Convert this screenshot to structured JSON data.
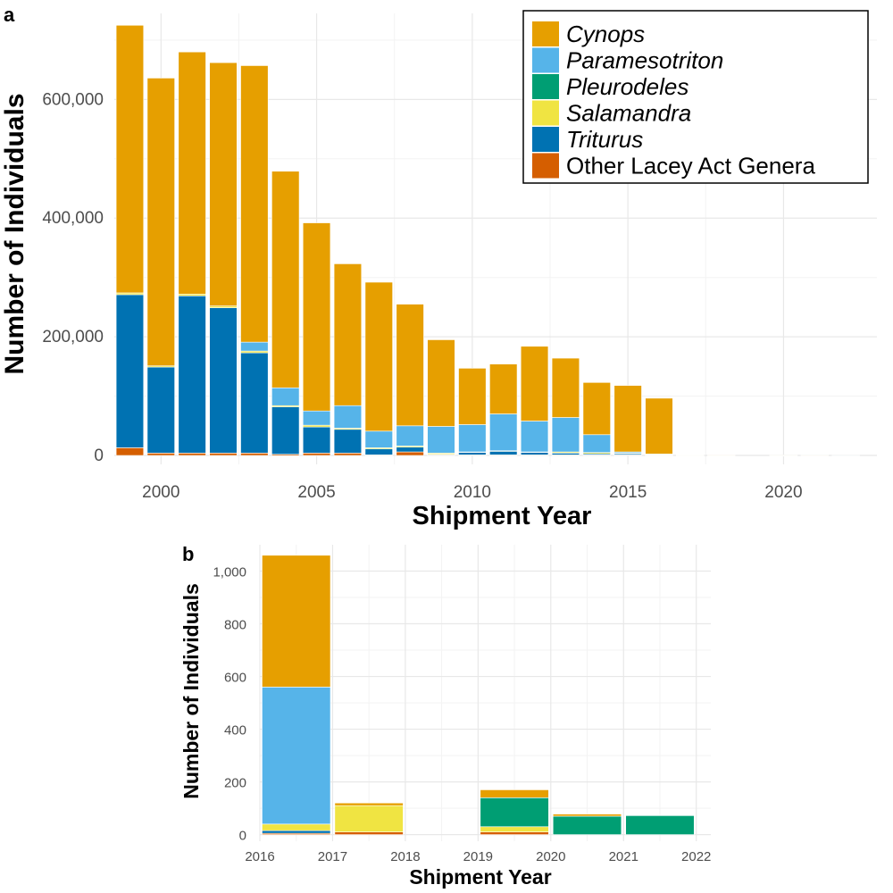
{
  "chart_data": [
    {
      "type": "bar",
      "stacked": true,
      "panel_label": "a",
      "xlabel": "Shipment Year",
      "ylabel": "Number of Individuals",
      "xlim": [
        1998.5,
        2023
      ],
      "ylim": [
        -15000,
        745000
      ],
      "x_ticks": [
        2000,
        2005,
        2010,
        2015,
        2020
      ],
      "y_ticks": [
        0,
        200000,
        400000,
        600000
      ],
      "y_tick_labels": [
        "0",
        "200,000",
        "400,000",
        "600,000"
      ],
      "legend_position": "top-right",
      "legend": [
        {
          "name": "Cynops",
          "color": "#E69F00",
          "italic": true
        },
        {
          "name": "Paramesotriton",
          "color": "#56B4E9",
          "italic": true
        },
        {
          "name": "Pleurodeles",
          "color": "#009E73",
          "italic": true
        },
        {
          "name": "Salamandra",
          "color": "#F0E442",
          "italic": true
        },
        {
          "name": "Triturus",
          "color": "#0072B2",
          "italic": true
        },
        {
          "name": "Other Lacey Act Genera",
          "color": "#D55E00",
          "italic": false
        }
      ],
      "stack_order": [
        "Other Lacey Act Genera",
        "Triturus",
        "Salamandra",
        "Pleurodeles",
        "Paramesotriton",
        "Cynops"
      ],
      "x": [
        1999,
        2000,
        2001,
        2002,
        2003,
        2004,
        2005,
        2006,
        2007,
        2008,
        2009,
        2010,
        2011,
        2012,
        2013,
        2014,
        2015,
        2016,
        2017,
        2018,
        2019,
        2020,
        2021,
        2022
      ],
      "series": [
        {
          "name": "Other Lacey Act Genera",
          "values": [
            13000,
            4000,
            4000,
            4000,
            4000,
            2000,
            4000,
            4000,
            1000,
            6000,
            1000,
            1000,
            1000,
            1000,
            1000,
            1000,
            1000,
            500,
            20,
            10,
            0,
            10,
            0,
            0
          ]
        },
        {
          "name": "Triturus",
          "values": [
            258000,
            145000,
            265000,
            245000,
            169000,
            80000,
            44000,
            40000,
            10000,
            8000,
            1000,
            4000,
            6000,
            4000,
            3000,
            2000,
            2000,
            500,
            20,
            0,
            0,
            0,
            0,
            0
          ]
        },
        {
          "name": "Salamandra",
          "values": [
            3000,
            2000,
            3000,
            3000,
            3000,
            2000,
            3000,
            2000,
            2000,
            2000,
            2000,
            1000,
            1000,
            1000,
            2000,
            2000,
            1000,
            500,
            20,
            100,
            0,
            20,
            0,
            0
          ]
        },
        {
          "name": "Pleurodeles",
          "values": [
            0,
            0,
            0,
            0,
            0,
            0,
            0,
            0,
            0,
            0,
            0,
            0,
            0,
            0,
            0,
            0,
            0,
            0,
            0,
            0,
            0,
            110,
            70,
            70
          ]
        },
        {
          "name": "Paramesotriton",
          "values": [
            0,
            0,
            0,
            0,
            15000,
            30000,
            24000,
            38000,
            28000,
            34000,
            45000,
            46000,
            62000,
            52000,
            58000,
            30000,
            2000,
            1000,
            500,
            0,
            0,
            0,
            0,
            0
          ]
        },
        {
          "name": "Cynops",
          "values": [
            451000,
            485000,
            408000,
            410000,
            466000,
            365000,
            317000,
            239000,
            251000,
            205000,
            146000,
            95000,
            84000,
            126000,
            100000,
            88000,
            112000,
            94000,
            500,
            10,
            0,
            30,
            10,
            0
          ]
        }
      ]
    },
    {
      "type": "bar",
      "stacked": true,
      "panel_label": "b",
      "xlabel": "Shipment Year",
      "ylabel": "Number of Individuals",
      "xlim": [
        2016,
        2022.2
      ],
      "ylim": [
        -25,
        1100
      ],
      "x_ticks": [
        2016,
        2017,
        2018,
        2019,
        2020,
        2021,
        2022
      ],
      "y_ticks": [
        0,
        200,
        400,
        600,
        800,
        1000
      ],
      "y_tick_labels": [
        "0",
        "200",
        "400",
        "600",
        "800",
        "1,000"
      ],
      "stack_order": [
        "Other Lacey Act Genera",
        "Triturus",
        "Salamandra",
        "Pleurodeles",
        "Paramesotriton",
        "Cynops"
      ],
      "x": [
        2016.5,
        2017.5,
        2018.5,
        2019.5,
        2020.5,
        2021.5
      ],
      "series": [
        {
          "name": "Other Lacey Act Genera",
          "values": [
            5,
            10,
            0,
            10,
            0,
            0
          ]
        },
        {
          "name": "Triturus",
          "values": [
            10,
            0,
            0,
            0,
            0,
            0
          ]
        },
        {
          "name": "Salamandra",
          "values": [
            25,
            100,
            0,
            20,
            0,
            0
          ]
        },
        {
          "name": "Pleurodeles",
          "values": [
            0,
            0,
            0,
            110,
            70,
            72
          ]
        },
        {
          "name": "Paramesotriton",
          "values": [
            520,
            0,
            0,
            0,
            0,
            0
          ]
        },
        {
          "name": "Cynops",
          "values": [
            500,
            10,
            0,
            30,
            8,
            0
          ]
        }
      ]
    }
  ]
}
